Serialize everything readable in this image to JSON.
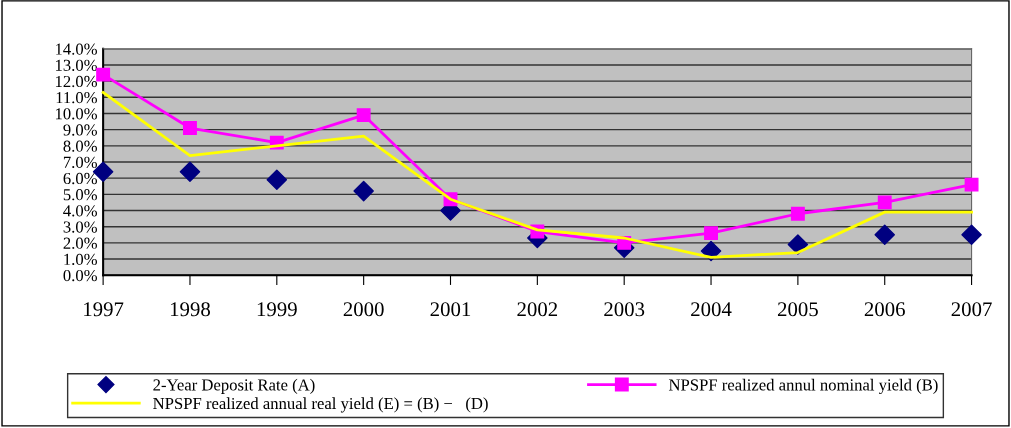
{
  "chart_data": {
    "type": "line",
    "categories": [
      "1997",
      "1998",
      "1999",
      "2000",
      "2001",
      "2002",
      "2003",
      "2004",
      "2005",
      "2006",
      "2007"
    ],
    "series": [
      {
        "name": "2-Year Deposit Rate (A)",
        "type": "scatter",
        "marker": "diamond",
        "color": "#000080",
        "values": [
          6.4,
          6.4,
          5.9,
          5.2,
          4.0,
          2.3,
          1.7,
          1.5,
          1.9,
          2.5,
          2.5
        ]
      },
      {
        "name": "NPSPF realized annul nominal yield (B)",
        "type": "line",
        "marker": "square",
        "color": "#ff00ff",
        "values": [
          12.4,
          9.1,
          8.2,
          9.9,
          4.7,
          2.7,
          2.0,
          2.6,
          3.8,
          4.5,
          5.6
        ]
      },
      {
        "name": "NPSPF realized annual real yield (E) = (B) −   (D)",
        "marker": "none",
        "color": "#ffff00",
        "values": [
          11.3,
          7.4,
          8.0,
          8.6,
          4.7,
          2.8,
          2.3,
          1.1,
          1.4,
          3.9,
          3.9
        ]
      }
    ],
    "ylim": [
      0,
      14
    ],
    "yticks": [
      {
        "value": 0,
        "label": "0.0%"
      },
      {
        "value": 1,
        "label": "1.0%"
      },
      {
        "value": 2,
        "label": "2.0%"
      },
      {
        "value": 3,
        "label": "3.0%"
      },
      {
        "value": 4,
        "label": "4.0%"
      },
      {
        "value": 5,
        "label": "5.0%"
      },
      {
        "value": 6,
        "label": "6.0%"
      },
      {
        "value": 7,
        "label": "7.0%"
      },
      {
        "value": 8,
        "label": "8.0%"
      },
      {
        "value": 9,
        "label": "9.0%"
      },
      {
        "value": 10,
        "label": "10.0%"
      },
      {
        "value": 11,
        "label": "11.0%"
      },
      {
        "value": 12,
        "label": "12.0%"
      },
      {
        "value": 13,
        "label": "13.0%"
      },
      {
        "value": 14,
        "label": "14.0%"
      }
    ],
    "grid": "y",
    "legend": "bottom"
  }
}
